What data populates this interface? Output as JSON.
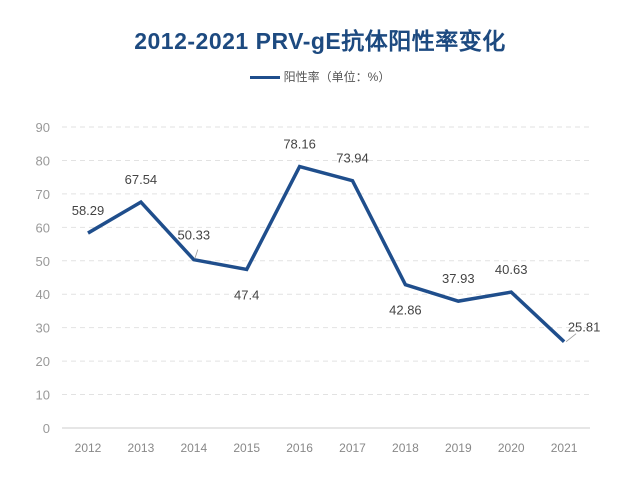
{
  "chart_data": {
    "type": "line",
    "title": "2012-2021  PRV-gE抗体阳性率变化",
    "categories": [
      "2012",
      "2013",
      "2014",
      "2015",
      "2016",
      "2017",
      "2018",
      "2019",
      "2020",
      "2021"
    ],
    "series": [
      {
        "name": "阳性率（单位：%）",
        "values": [
          58.29,
          67.54,
          50.33,
          47.4,
          78.16,
          73.94,
          42.86,
          37.93,
          40.63,
          25.81
        ],
        "labels": [
          "58.29",
          "67.54",
          "50.33",
          "47.4",
          "78.16",
          "73.94",
          "42.86",
          "37.93",
          "40.63",
          "25.81"
        ],
        "color": "#1f4e8c"
      }
    ],
    "ylim": [
      0,
      90
    ],
    "yticks": [
      "0",
      "10",
      "20",
      "30",
      "40",
      "50",
      "60",
      "70",
      "80",
      "90"
    ],
    "grid": true,
    "gridStyle": "dashed",
    "legend": "top",
    "xlabel": "",
    "ylabel": ""
  }
}
